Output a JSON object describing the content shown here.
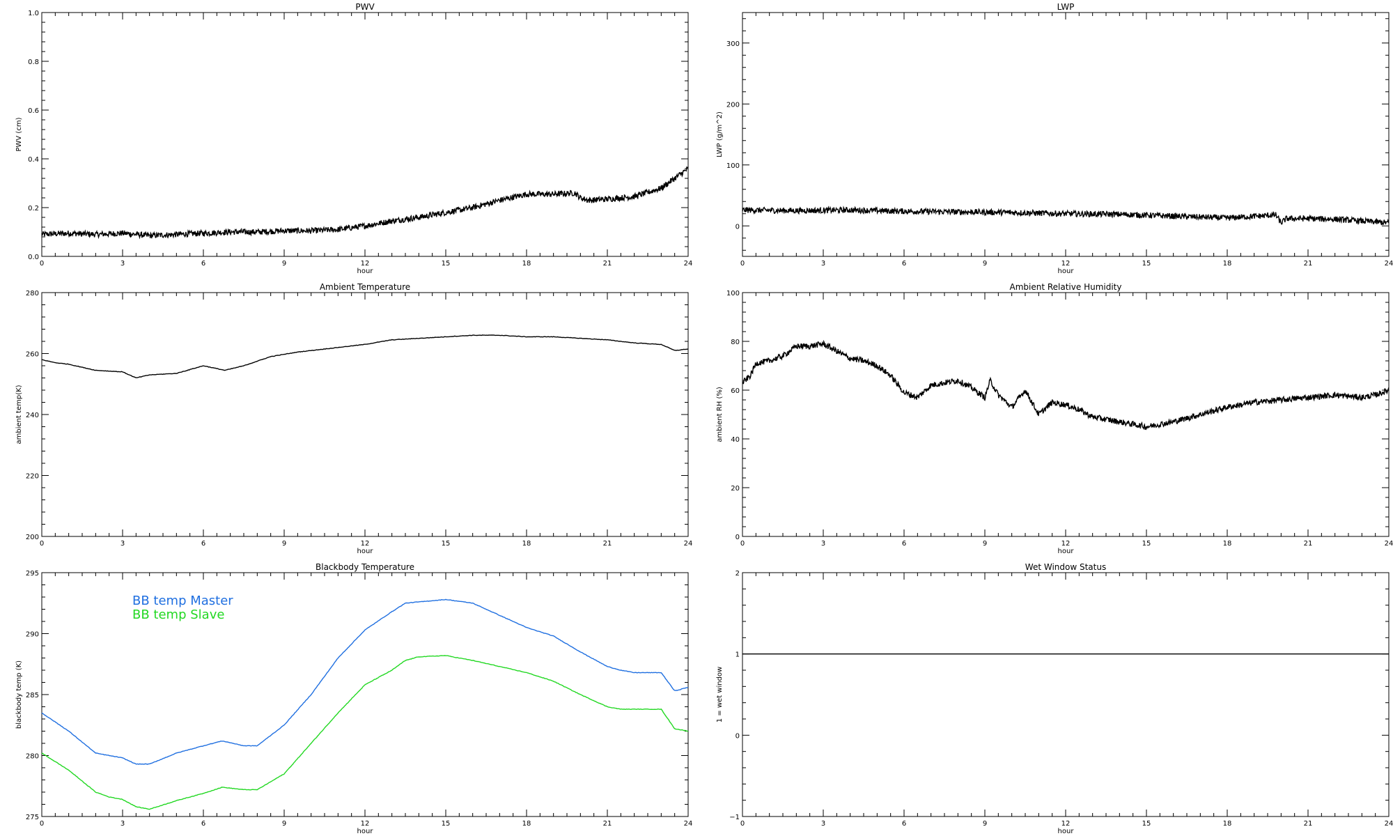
{
  "chart_data": [
    {
      "id": "pwv",
      "type": "line",
      "title": "PWV",
      "xlabel": "hour",
      "ylabel": "PWV (cm)",
      "xlim": [
        0,
        24
      ],
      "ylim": [
        0.0,
        1.0
      ],
      "xticks": [
        0,
        3,
        6,
        9,
        12,
        15,
        18,
        21,
        24
      ],
      "yticks": [
        0.0,
        0.2,
        0.4,
        0.6,
        0.8,
        1.0
      ],
      "yticklabels": [
        "0.0",
        "0.2",
        "0.4",
        "0.6",
        "0.8",
        "1.0"
      ],
      "style": "noisy",
      "series": [
        {
          "color": "#000000",
          "x": [
            0,
            1,
            2,
            3,
            4,
            5,
            6,
            7,
            8,
            9,
            10,
            11,
            12,
            13,
            14,
            15,
            16,
            17,
            18,
            19,
            19.8,
            20,
            20.3,
            21,
            22,
            23,
            24
          ],
          "y": [
            0.09,
            0.095,
            0.09,
            0.095,
            0.085,
            0.09,
            0.095,
            0.1,
            0.1,
            0.105,
            0.105,
            0.11,
            0.125,
            0.145,
            0.16,
            0.18,
            0.2,
            0.23,
            0.255,
            0.255,
            0.26,
            0.24,
            0.23,
            0.235,
            0.245,
            0.28,
            0.36
          ]
        }
      ]
    },
    {
      "id": "lwp",
      "type": "line",
      "title": "LWP",
      "xlabel": "hour",
      "ylabel": "LWP (g/m^2)",
      "xlim": [
        0,
        24
      ],
      "ylim": [
        -50,
        350
      ],
      "xticks": [
        0,
        3,
        6,
        9,
        12,
        15,
        18,
        21,
        24
      ],
      "yticks": [
        0,
        100,
        200,
        300
      ],
      "yticklabels": [
        "0",
        "100",
        "200",
        "300"
      ],
      "style": "noisy",
      "series": [
        {
          "color": "#000000",
          "x": [
            0,
            2,
            4,
            6,
            8,
            10,
            12,
            14,
            16,
            18,
            19.8,
            20,
            20.2,
            21,
            22,
            23,
            24
          ],
          "y": [
            26,
            25,
            26,
            24,
            23,
            22,
            20,
            19,
            16,
            13,
            18,
            5,
            12,
            12,
            11,
            8,
            5
          ]
        }
      ]
    },
    {
      "id": "ambient-temp",
      "type": "line",
      "title": "Ambient Temperature",
      "xlabel": "hour",
      "ylabel": "ambient temp(K)",
      "xlim": [
        0,
        24
      ],
      "ylim": [
        200,
        280
      ],
      "xticks": [
        0,
        3,
        6,
        9,
        12,
        15,
        18,
        21,
        24
      ],
      "yticks": [
        200,
        220,
        240,
        260,
        280
      ],
      "yticklabels": [
        "200",
        "220",
        "240",
        "260",
        "280"
      ],
      "style": "smooth",
      "series": [
        {
          "color": "#000000",
          "x": [
            0,
            0.5,
            1,
            2,
            3,
            3.5,
            4,
            5,
            6,
            6.8,
            7.5,
            8.5,
            9.5,
            10.5,
            12,
            13,
            14,
            15,
            16,
            17,
            18,
            19,
            20,
            21,
            22,
            23,
            23.5,
            24
          ],
          "y": [
            258,
            257,
            256.5,
            254.5,
            254,
            252,
            253,
            253.5,
            256,
            254.5,
            256,
            259,
            260.5,
            261.5,
            263,
            264.5,
            265,
            265.5,
            266,
            266,
            265.5,
            265.5,
            265,
            264.5,
            263.5,
            263,
            261,
            261.5
          ]
        }
      ]
    },
    {
      "id": "ambient-rh",
      "type": "line",
      "title": "Ambient Relative Humidity",
      "xlabel": "hour",
      "ylabel": "ambient RH (%)",
      "xlim": [
        0,
        24
      ],
      "ylim": [
        0,
        100
      ],
      "xticks": [
        0,
        3,
        6,
        9,
        12,
        15,
        18,
        21,
        24
      ],
      "yticks": [
        0,
        20,
        40,
        60,
        80,
        100
      ],
      "yticklabels": [
        "0",
        "20",
        "40",
        "60",
        "80",
        "100"
      ],
      "style": "noisy",
      "series": [
        {
          "color": "#000000",
          "x": [
            0,
            0.3,
            0.5,
            1,
            1.5,
            2,
            2.5,
            3,
            3.5,
            4,
            4.5,
            5,
            5.5,
            6,
            6.5,
            7,
            7.5,
            8,
            8.5,
            9,
            9.2,
            9.5,
            10,
            10.5,
            11,
            11.5,
            12,
            12.5,
            13,
            14,
            15,
            16,
            17,
            18,
            19,
            20,
            21,
            22,
            23,
            23.5,
            24
          ],
          "y": [
            63,
            66,
            71,
            72,
            74,
            78,
            78,
            79,
            76,
            73,
            72,
            70,
            66,
            59,
            57,
            62,
            63,
            64,
            61,
            57,
            64,
            58,
            53,
            60,
            50,
            55,
            54,
            52,
            49,
            47,
            45,
            47,
            50,
            53,
            55,
            56,
            57,
            58,
            57,
            58,
            60
          ]
        }
      ]
    },
    {
      "id": "blackbody-temp",
      "type": "line",
      "title": "Blackbody Temperature",
      "xlabel": "hour",
      "ylabel": "blackbody temp (K)",
      "xlim": [
        0,
        24
      ],
      "ylim": [
        275,
        295
      ],
      "xticks": [
        0,
        3,
        6,
        9,
        12,
        15,
        18,
        21,
        24
      ],
      "yticks": [
        275,
        280,
        285,
        290,
        295
      ],
      "yticklabels": [
        "275",
        "280",
        "285",
        "290",
        "295"
      ],
      "style": "smooth",
      "legend": "top-left",
      "series": [
        {
          "name": "BB temp Master",
          "color": "#1f6fe0",
          "x": [
            0,
            1,
            2,
            2.5,
            3,
            3.5,
            4,
            5,
            6,
            6.7,
            7.5,
            8,
            9,
            10,
            11,
            12,
            13,
            13.5,
            14,
            15,
            16,
            17,
            18,
            19,
            20,
            21,
            21.5,
            22,
            23,
            23.5,
            24
          ],
          "y": [
            283.5,
            282,
            280.2,
            280,
            279.8,
            279.3,
            279.3,
            280.2,
            280.8,
            281.2,
            280.8,
            280.8,
            282.5,
            285,
            288,
            290.3,
            291.8,
            292.5,
            292.6,
            292.8,
            292.5,
            291.5,
            290.5,
            289.8,
            288.5,
            287.3,
            287,
            286.8,
            286.8,
            285.3,
            285.6
          ]
        },
        {
          "name": "BB temp Slave",
          "color": "#22d822",
          "x": [
            0,
            1,
            2,
            2.5,
            3,
            3.5,
            4,
            5,
            6,
            6.7,
            7.5,
            8,
            9,
            10,
            11,
            12,
            13,
            13.5,
            14,
            15,
            16,
            17,
            18,
            19,
            20,
            21,
            21.5,
            22,
            23,
            23.5,
            24
          ],
          "y": [
            280.2,
            278.8,
            277,
            276.6,
            276.4,
            275.8,
            275.6,
            276.3,
            276.9,
            277.4,
            277.2,
            277.2,
            278.5,
            281,
            283.5,
            285.8,
            287,
            287.8,
            288.1,
            288.2,
            287.8,
            287.3,
            286.8,
            286.1,
            285,
            284,
            283.8,
            283.8,
            283.8,
            282.2,
            282
          ]
        }
      ]
    },
    {
      "id": "wet-window",
      "type": "line",
      "title": "Wet Window Status",
      "xlabel": "hour",
      "ylabel": "1 = wet window",
      "xlim": [
        0,
        24
      ],
      "ylim": [
        -1,
        2
      ],
      "xticks": [
        0,
        3,
        6,
        9,
        12,
        15,
        18,
        21,
        24
      ],
      "yticks": [
        -1,
        0,
        1,
        2
      ],
      "yticklabels": [
        "−1",
        "0",
        "1",
        "2"
      ],
      "style": "smooth",
      "series": [
        {
          "color": "#000000",
          "x": [
            0,
            24
          ],
          "y": [
            1,
            1
          ]
        }
      ]
    }
  ]
}
